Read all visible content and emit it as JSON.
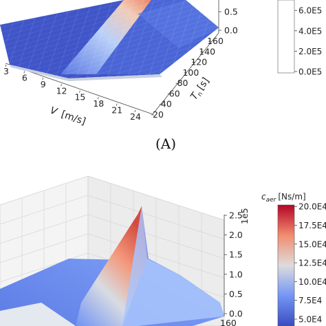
{
  "chart_data": [
    {
      "type": "surface3d",
      "panel_label": "(A)",
      "x_axis": {
        "label_var": "V",
        "label_unit": "[m/s]",
        "ticks": [
          "3",
          "6",
          "9",
          "12",
          "15",
          "18",
          "21",
          "24"
        ]
      },
      "y_axis": {
        "label_var": "T",
        "label_sub": "n",
        "label_unit": "[s]",
        "ticks": [
          "20",
          "40",
          "60",
          "80",
          "100",
          "120",
          "140",
          "160"
        ]
      },
      "z_axis": {
        "ticks": [
          "0.0",
          "0.5"
        ]
      },
      "colorbar": {
        "ticks": [
          "0.0E5",
          "2.0E5",
          "4.0E5",
          "6.0E5"
        ]
      }
    },
    {
      "type": "surface3d",
      "z_axis": {
        "ticks": [
          "0.0",
          "0.5",
          "1.0",
          "1.5",
          "2.0",
          "2.5"
        ],
        "offset": "1e5"
      },
      "y_axis": {
        "ticks": [
          "160"
        ]
      },
      "colorbar": {
        "title_var": "c",
        "title_sub": "aer",
        "title_unit": "[Ns/m]",
        "ticks": [
          "5.0E4",
          "7.5E4",
          "10.0E4",
          "12.5E4",
          "15.0E4",
          "17.5E4",
          "20.0E4"
        ]
      }
    }
  ]
}
